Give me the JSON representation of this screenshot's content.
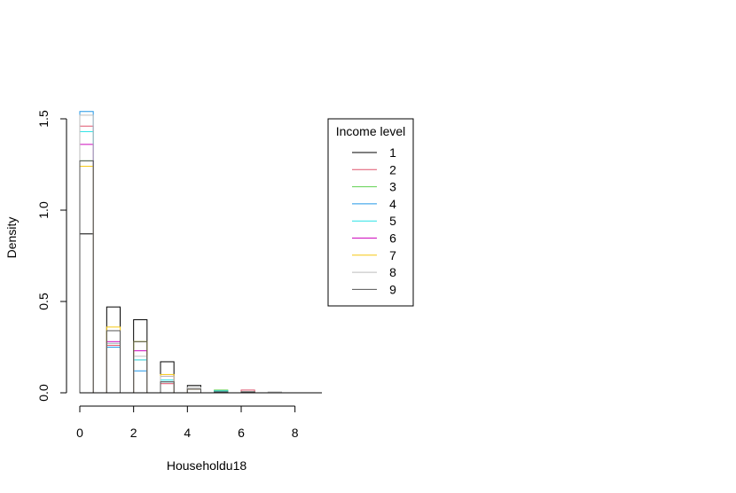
{
  "chart_data": {
    "type": "bar",
    "subtype": "overlaid histogram (step outlines)",
    "title": "",
    "xlabel": "Householdu18",
    "ylabel": "Density",
    "xlim": [
      0,
      9
    ],
    "ylim": [
      0,
      1.5
    ],
    "x_ticks": [
      "0",
      "2",
      "4",
      "6",
      "8"
    ],
    "y_ticks": [
      "0.0",
      "0.5",
      "1.0",
      "1.5"
    ],
    "bin_edges": [
      0,
      0.5,
      1,
      1.5,
      2,
      2.5,
      3,
      3.5,
      4,
      4.5,
      5,
      5.5,
      6,
      6.5,
      7,
      7.5,
      8,
      8.5,
      9
    ],
    "legend": {
      "title": "Income level",
      "placement": "right",
      "entries": [
        "1",
        "2",
        "3",
        "4",
        "5",
        "6",
        "7",
        "8",
        "9"
      ]
    },
    "series": [
      {
        "name": "1",
        "color": "#000000",
        "values": [
          0.87,
          0,
          0.47,
          0,
          0.4,
          0,
          0.17,
          0,
          0.04,
          0,
          0.01,
          0,
          0.005,
          0,
          0,
          0,
          0,
          0
        ]
      },
      {
        "name": "2",
        "color": "#DF536B",
        "values": [
          1.46,
          0,
          0.26,
          0,
          0.18,
          0,
          0.05,
          0,
          0.02,
          0,
          0.01,
          0,
          0.015,
          0,
          0,
          0,
          0,
          0
        ]
      },
      {
        "name": "3",
        "color": "#61D04F",
        "values": [
          1.27,
          0,
          0.25,
          0,
          0.28,
          0,
          0.06,
          0,
          0.02,
          0,
          0.015,
          0,
          0.005,
          0,
          0,
          0,
          0,
          0
        ]
      },
      {
        "name": "4",
        "color": "#2297E6",
        "values": [
          1.54,
          0,
          0.25,
          0,
          0.12,
          0,
          0.06,
          0,
          0.02,
          0,
          0.01,
          0,
          0.005,
          0,
          0,
          0,
          0,
          0
        ]
      },
      {
        "name": "5",
        "color": "#28E2E5",
        "values": [
          1.43,
          0,
          0.27,
          0,
          0.18,
          0,
          0.07,
          0,
          0.02,
          0,
          0.01,
          0,
          0.005,
          0,
          0,
          0,
          0,
          0
        ]
      },
      {
        "name": "6",
        "color": "#CD0BBC",
        "values": [
          1.36,
          0,
          0.28,
          0,
          0.23,
          0,
          0.09,
          0,
          0.02,
          0,
          0.005,
          0,
          0.005,
          0,
          0,
          0,
          0,
          0
        ]
      },
      {
        "name": "7",
        "color": "#F5C710",
        "values": [
          1.24,
          0,
          0.36,
          0,
          0.28,
          0,
          0.1,
          0,
          0.02,
          0,
          0.005,
          0,
          0.005,
          0,
          0,
          0,
          0,
          0
        ]
      },
      {
        "name": "8",
        "color": "#BEBEBE",
        "values": [
          1.52,
          0,
          0.27,
          0,
          0.2,
          0,
          0.09,
          0,
          0.03,
          0,
          0.005,
          0,
          0.005,
          0,
          0.005,
          0,
          0,
          0
        ]
      },
      {
        "name": "9",
        "color": "#555555",
        "values": [
          1.27,
          0,
          0.34,
          0,
          0.28,
          0,
          0.06,
          0,
          0.02,
          0,
          0.005,
          0,
          0.005,
          0,
          0,
          0,
          0,
          0
        ]
      }
    ]
  }
}
